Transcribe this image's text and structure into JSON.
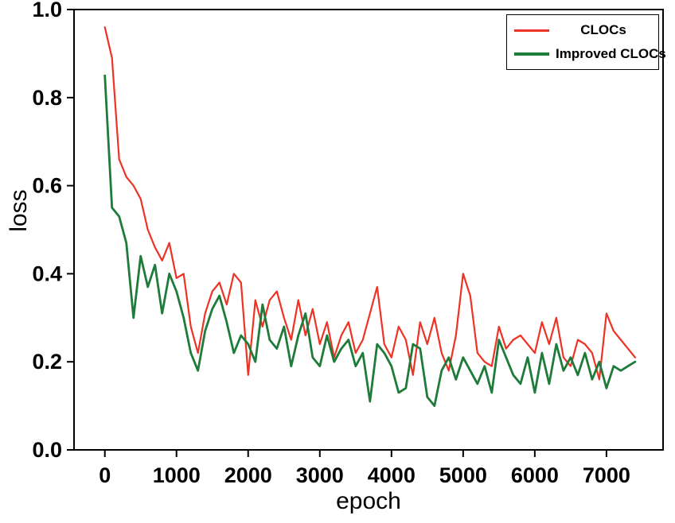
{
  "figure": {
    "background": "#ffffff",
    "frame_color": "#000000"
  },
  "chart_data": {
    "type": "line",
    "title": "",
    "xlabel": "epoch",
    "ylabel": "loss",
    "xlim": [
      -430,
      7790
    ],
    "ylim": [
      0.0,
      1.0
    ],
    "xticks": [
      0,
      1000,
      2000,
      3000,
      4000,
      5000,
      6000,
      7000
    ],
    "yticks": [
      "0.0",
      "0.2",
      "0.4",
      "0.6",
      "0.8",
      "1.0"
    ],
    "grid": false,
    "legend": {
      "position": "top-right",
      "border": true
    },
    "x": [
      0,
      100,
      200,
      300,
      400,
      500,
      600,
      700,
      800,
      900,
      1000,
      1100,
      1200,
      1300,
      1400,
      1500,
      1600,
      1700,
      1800,
      1900,
      2000,
      2100,
      2200,
      2300,
      2400,
      2500,
      2600,
      2700,
      2800,
      2900,
      3000,
      3100,
      3200,
      3300,
      3400,
      3500,
      3600,
      3700,
      3800,
      3900,
      4000,
      4100,
      4200,
      4300,
      4400,
      4500,
      4600,
      4700,
      4800,
      4900,
      5000,
      5100,
      5200,
      5300,
      5400,
      5500,
      5600,
      5700,
      5800,
      5900,
      6000,
      6100,
      6200,
      6300,
      6400,
      6500,
      6600,
      6700,
      6800,
      6900,
      7000,
      7100,
      7200,
      7300,
      7400
    ],
    "series": [
      {
        "name": "CLOCs",
        "color": "#ed3323",
        "width": 2.2,
        "values": [
          0.96,
          0.89,
          0.66,
          0.62,
          0.6,
          0.57,
          0.5,
          0.46,
          0.43,
          0.47,
          0.39,
          0.4,
          0.28,
          0.22,
          0.31,
          0.36,
          0.38,
          0.33,
          0.4,
          0.38,
          0.17,
          0.34,
          0.28,
          0.34,
          0.36,
          0.3,
          0.25,
          0.34,
          0.26,
          0.32,
          0.24,
          0.29,
          0.21,
          0.26,
          0.29,
          0.22,
          0.25,
          0.31,
          0.37,
          0.24,
          0.21,
          0.28,
          0.25,
          0.17,
          0.29,
          0.24,
          0.3,
          0.22,
          0.18,
          0.26,
          0.4,
          0.35,
          0.22,
          0.2,
          0.19,
          0.28,
          0.23,
          0.25,
          0.26,
          0.24,
          0.22,
          0.29,
          0.24,
          0.3,
          0.21,
          0.19,
          0.25,
          0.24,
          0.22,
          0.16,
          0.31,
          0.27,
          0.25,
          0.23,
          0.21
        ]
      },
      {
        "name": "Improved CLOCs",
        "color": "#1e7b3a",
        "width": 2.8,
        "values": [
          0.85,
          0.55,
          0.53,
          0.47,
          0.3,
          0.44,
          0.37,
          0.42,
          0.31,
          0.4,
          0.36,
          0.3,
          0.22,
          0.18,
          0.27,
          0.32,
          0.35,
          0.29,
          0.22,
          0.26,
          0.24,
          0.2,
          0.33,
          0.25,
          0.23,
          0.28,
          0.19,
          0.26,
          0.31,
          0.21,
          0.19,
          0.26,
          0.2,
          0.23,
          0.25,
          0.19,
          0.22,
          0.11,
          0.24,
          0.22,
          0.19,
          0.13,
          0.14,
          0.24,
          0.23,
          0.12,
          0.1,
          0.18,
          0.21,
          0.16,
          0.21,
          0.18,
          0.15,
          0.19,
          0.13,
          0.25,
          0.21,
          0.17,
          0.15,
          0.21,
          0.13,
          0.22,
          0.15,
          0.24,
          0.18,
          0.21,
          0.17,
          0.22,
          0.16,
          0.2,
          0.14,
          0.19,
          0.18,
          0.19,
          0.2
        ]
      }
    ]
  }
}
